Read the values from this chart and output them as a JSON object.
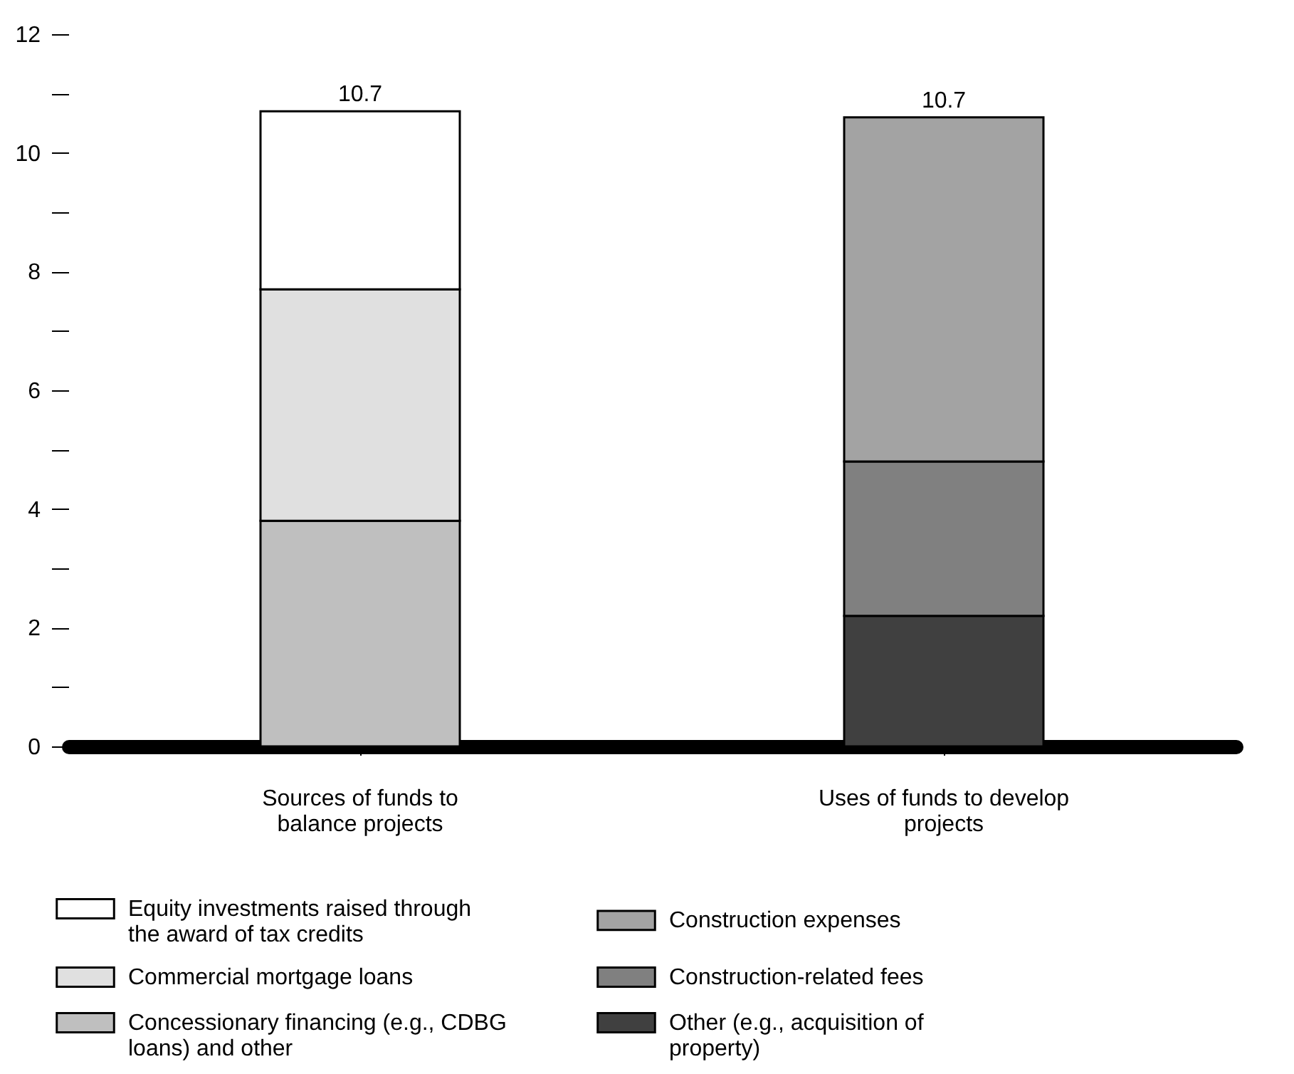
{
  "chart_data": {
    "type": "bar",
    "stacked": true,
    "categories": [
      "Sources of funds to balance projects",
      "Uses of funds to develop projects"
    ],
    "series": [
      {
        "name": "Concessionary financing (e.g., CDBG loans) and other",
        "color": "#bfbfbf",
        "values": [
          3.8,
          null
        ]
      },
      {
        "name": "Commercial mortgage loans",
        "color": "#e0e0e0",
        "values": [
          3.9,
          null
        ]
      },
      {
        "name": "Equity investments raised through the award of tax credits",
        "color": "#ffffff",
        "values": [
          3.0,
          null
        ]
      },
      {
        "name": "Other (e.g., acquisition of property)",
        "color": "#404040",
        "values": [
          null,
          2.2
        ]
      },
      {
        "name": "Construction-related fees",
        "color": "#808080",
        "values": [
          null,
          2.6
        ]
      },
      {
        "name": "Construction expenses",
        "color": "#a3a3a3",
        "values": [
          null,
          5.8
        ]
      }
    ],
    "totals": [
      "10.7",
      "10.7"
    ],
    "ylim": [
      0,
      12
    ],
    "yticks": [
      0,
      {
        "value": 1,
        "label": null
      },
      2,
      {
        "value": 3,
        "label": null
      },
      4,
      {
        "value": 5,
        "label": null
      },
      6,
      {
        "value": 7,
        "label": null
      },
      8,
      {
        "value": 9,
        "label": null
      },
      10,
      {
        "value": 11,
        "label": null
      },
      12
    ],
    "grid": false,
    "legend": "bottom"
  }
}
